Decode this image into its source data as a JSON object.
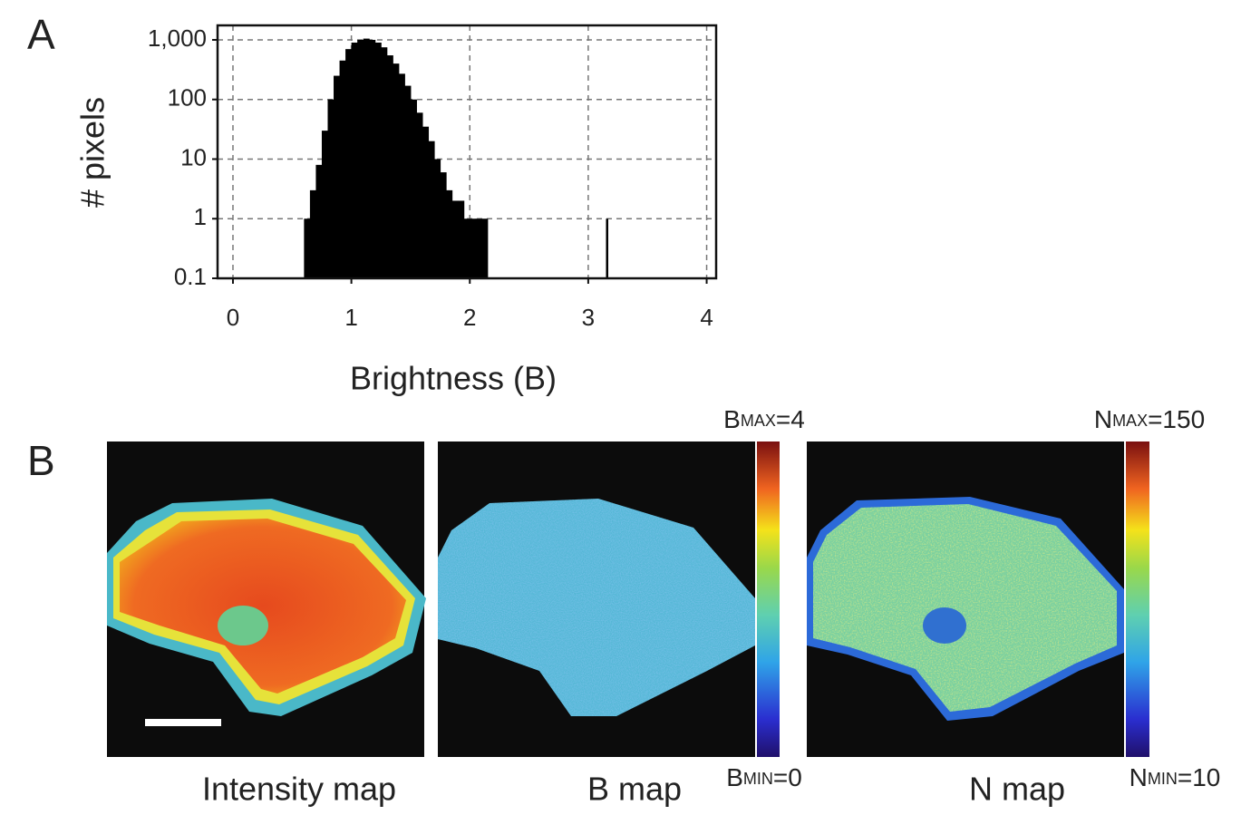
{
  "panel_a": {
    "label": "A"
  },
  "chart_data": {
    "type": "bar",
    "x_label": "Brightness (B)",
    "y_label": "# pixels",
    "x": [
      0.625,
      0.675,
      0.725,
      0.775,
      0.825,
      0.875,
      0.925,
      0.975,
      1.025,
      1.075,
      1.125,
      1.175,
      1.225,
      1.275,
      1.325,
      1.375,
      1.425,
      1.475,
      1.525,
      1.575,
      1.625,
      1.675,
      1.725,
      1.775,
      1.825,
      1.875,
      1.925,
      1.975,
      2.025,
      2.075,
      2.125,
      3.175
    ],
    "values": [
      1,
      3,
      8,
      30,
      100,
      250,
      450,
      700,
      900,
      1000,
      1050,
      1000,
      900,
      750,
      550,
      400,
      270,
      170,
      100,
      60,
      35,
      20,
      10,
      6,
      3,
      2,
      2,
      1,
      1,
      1,
      1,
      1
    ],
    "color": "#000000",
    "xlim": [
      -0.13,
      4.08
    ],
    "xticks": [
      0,
      1,
      2,
      3,
      4
    ],
    "ylim": [
      0.1,
      1750
    ],
    "yticks": [
      0.1,
      1,
      10,
      100,
      {
        "value": 1000,
        "label": "1,000"
      }
    ],
    "log_y": true,
    "grid": true
  },
  "panel_b": {
    "label": "B",
    "images": [
      {
        "caption": "Intensity map"
      },
      {
        "caption": "B map"
      },
      {
        "caption": "N map"
      }
    ],
    "colorbars": [
      {
        "max": {
          "symbol": "B",
          "sub": "MAX",
          "value": "=4"
        },
        "min": {
          "symbol": "B",
          "sub": "MIN",
          "value": "=0"
        }
      },
      {
        "max": {
          "symbol": "N",
          "sub": "MAX",
          "value": "=150"
        },
        "min": {
          "symbol": "N",
          "sub": "MIN",
          "value": "=10"
        }
      }
    ]
  }
}
